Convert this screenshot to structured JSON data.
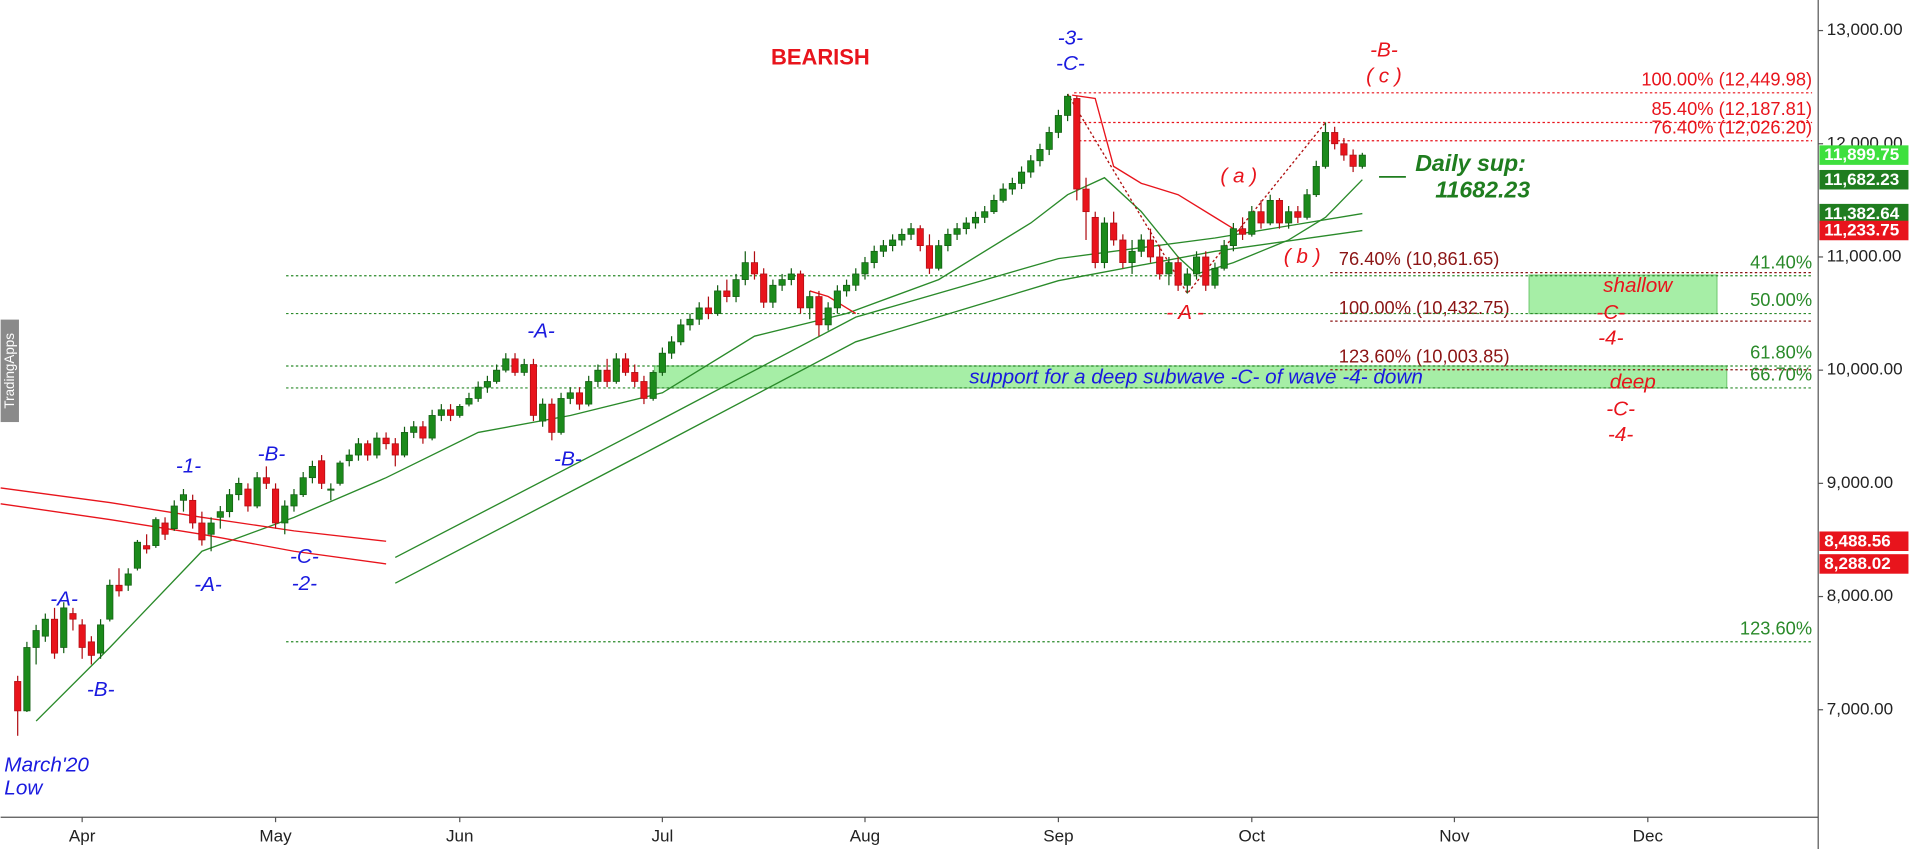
{
  "chart_data": {
    "type": "candlestick",
    "up_color": "#1b8a1b",
    "down_color": "#e8141c",
    "xlim": [
      -1.85,
      195.5
    ],
    "ylim": [
      6050,
      13270
    ],
    "xticks": [
      {
        "value": 7,
        "label": "Apr"
      },
      {
        "value": 28,
        "label": "May"
      },
      {
        "value": 48,
        "label": "Jun"
      },
      {
        "value": 70,
        "label": "Jul"
      },
      {
        "value": 92,
        "label": "Aug"
      },
      {
        "value": 113,
        "label": "Sep"
      },
      {
        "value": 134,
        "label": "Oct"
      },
      {
        "value": 156,
        "label": "Nov"
      },
      {
        "value": 177,
        "label": "Dec"
      }
    ],
    "yticks": [
      {
        "value": 7000,
        "label": "7,000.00"
      },
      {
        "value": 8000,
        "label": "8,000.00"
      },
      {
        "value": 9000,
        "label": "9,000.00"
      },
      {
        "value": 10000,
        "label": "10,000.00"
      },
      {
        "value": 11000,
        "label": "11,000.00"
      },
      {
        "value": 12000,
        "label": "12,000.00"
      },
      {
        "value": 13000,
        "label": "13,000.00"
      }
    ],
    "x": [
      0,
      1,
      2,
      3,
      4,
      5,
      6,
      7,
      8,
      9,
      10,
      11,
      12,
      13,
      14,
      15,
      16,
      17,
      18,
      19,
      20,
      21,
      22,
      23,
      24,
      25,
      26,
      27,
      28,
      29,
      30,
      31,
      32,
      33,
      34,
      35,
      36,
      37,
      38,
      39,
      40,
      41,
      42,
      43,
      44,
      45,
      46,
      47,
      48,
      49,
      50,
      51,
      52,
      53,
      54,
      55,
      56,
      57,
      58,
      59,
      60,
      61,
      62,
      63,
      64,
      65,
      66,
      67,
      68,
      69,
      70,
      71,
      72,
      73,
      74,
      75,
      76,
      77,
      78,
      79,
      80,
      81,
      82,
      83,
      84,
      85,
      86,
      87,
      88,
      89,
      90,
      91,
      92,
      93,
      94,
      95,
      96,
      97,
      98,
      99,
      100,
      101,
      102,
      103,
      104,
      105,
      106,
      107,
      108,
      109,
      110,
      111,
      112,
      113,
      114,
      115,
      116,
      117,
      118,
      119,
      120,
      121,
      122,
      123,
      124,
      125,
      126,
      127,
      128,
      129,
      130,
      131,
      132,
      133,
      134,
      135,
      136,
      137,
      138,
      139,
      140,
      141,
      142,
      143,
      144,
      145,
      146
    ],
    "ohlc": [
      [
        7250,
        7300,
        6770,
        6990
      ],
      [
        6990,
        7600,
        6980,
        7550
      ],
      [
        7550,
        7750,
        7400,
        7700
      ],
      [
        7650,
        7850,
        7600,
        7800
      ],
      [
        7800,
        7900,
        7450,
        7500
      ],
      [
        7550,
        7950,
        7500,
        7900
      ],
      [
        7850,
        7900,
        7700,
        7800
      ],
      [
        7750,
        7800,
        7450,
        7550
      ],
      [
        7600,
        7650,
        7400,
        7480
      ],
      [
        7500,
        7800,
        7450,
        7750
      ],
      [
        7800,
        8150,
        7780,
        8100
      ],
      [
        8100,
        8250,
        8000,
        8050
      ],
      [
        8100,
        8250,
        8050,
        8200
      ],
      [
        8250,
        8500,
        8230,
        8480
      ],
      [
        8450,
        8550,
        8380,
        8420
      ],
      [
        8450,
        8700,
        8430,
        8680
      ],
      [
        8650,
        8700,
        8500,
        8550
      ],
      [
        8600,
        8850,
        8580,
        8800
      ],
      [
        8850,
        8950,
        8750,
        8900
      ],
      [
        8850,
        8900,
        8600,
        8650
      ],
      [
        8650,
        8750,
        8450,
        8500
      ],
      [
        8550,
        8700,
        8400,
        8650
      ],
      [
        8700,
        8800,
        8600,
        8750
      ],
      [
        8750,
        8950,
        8700,
        8900
      ],
      [
        8900,
        9050,
        8850,
        9000
      ],
      [
        8950,
        9000,
        8750,
        8800
      ],
      [
        8800,
        9100,
        8780,
        9050
      ],
      [
        9050,
        9150,
        8950,
        9000
      ],
      [
        8950,
        9000,
        8600,
        8650
      ],
      [
        8650,
        8850,
        8550,
        8800
      ],
      [
        8800,
        8950,
        8750,
        8900
      ],
      [
        8900,
        9100,
        8880,
        9050
      ],
      [
        9050,
        9200,
        9000,
        9150
      ],
      [
        9200,
        9250,
        8950,
        9000
      ],
      [
        8950,
        9000,
        8850,
        8950
      ],
      [
        9000,
        9200,
        8980,
        9180
      ],
      [
        9200,
        9300,
        9150,
        9250
      ],
      [
        9250,
        9400,
        9200,
        9350
      ],
      [
        9350,
        9380,
        9200,
        9250
      ],
      [
        9250,
        9450,
        9220,
        9400
      ],
      [
        9400,
        9450,
        9300,
        9350
      ],
      [
        9350,
        9400,
        9150,
        9250
      ],
      [
        9250,
        9500,
        9230,
        9450
      ],
      [
        9450,
        9550,
        9400,
        9500
      ],
      [
        9500,
        9550,
        9350,
        9400
      ],
      [
        9400,
        9650,
        9380,
        9600
      ],
      [
        9600,
        9700,
        9550,
        9650
      ],
      [
        9650,
        9700,
        9550,
        9600
      ],
      [
        9600,
        9700,
        9580,
        9680
      ],
      [
        9700,
        9800,
        9680,
        9750
      ],
      [
        9750,
        9900,
        9720,
        9850
      ],
      [
        9850,
        9950,
        9800,
        9900
      ],
      [
        9900,
        10050,
        9880,
        10000
      ],
      [
        10000,
        10150,
        9980,
        10100
      ],
      [
        10100,
        10150,
        9950,
        9980
      ],
      [
        9980,
        10100,
        9950,
        10050
      ],
      [
        10050,
        10100,
        9550,
        9600
      ],
      [
        9550,
        9750,
        9500,
        9700
      ],
      [
        9700,
        9750,
        9380,
        9450
      ],
      [
        9450,
        9800,
        9430,
        9750
      ],
      [
        9750,
        9850,
        9700,
        9800
      ],
      [
        9800,
        9850,
        9650,
        9700
      ],
      [
        9700,
        9950,
        9680,
        9900
      ],
      [
        9900,
        10050,
        9850,
        10000
      ],
      [
        10000,
        10100,
        9850,
        9900
      ],
      [
        9900,
        10150,
        9880,
        10100
      ],
      [
        10100,
        10150,
        9950,
        9980
      ],
      [
        9980,
        10050,
        9850,
        9900
      ],
      [
        9900,
        9950,
        9700,
        9750
      ],
      [
        9750,
        10000,
        9730,
        9980
      ],
      [
        9980,
        10200,
        9950,
        10150
      ],
      [
        10150,
        10300,
        10100,
        10250
      ],
      [
        10250,
        10450,
        10220,
        10400
      ],
      [
        10400,
        10500,
        10350,
        10450
      ],
      [
        10450,
        10600,
        10400,
        10550
      ],
      [
        10550,
        10650,
        10450,
        10500
      ],
      [
        10500,
        10750,
        10480,
        10700
      ],
      [
        10700,
        10800,
        10600,
        10650
      ],
      [
        10650,
        10850,
        10600,
        10800
      ],
      [
        10800,
        11050,
        10750,
        10950
      ],
      [
        10950,
        11050,
        10800,
        10850
      ],
      [
        10850,
        10900,
        10550,
        10600
      ],
      [
        10600,
        10800,
        10550,
        10750
      ],
      [
        10750,
        10850,
        10700,
        10800
      ],
      [
        10800,
        10900,
        10750,
        10850
      ],
      [
        10850,
        10880,
        10500,
        10550
      ],
      [
        10550,
        10700,
        10450,
        10650
      ],
      [
        10650,
        10700,
        10300,
        10400
      ],
      [
        10400,
        10600,
        10350,
        10550
      ],
      [
        10550,
        10750,
        10500,
        10700
      ],
      [
        10700,
        10800,
        10650,
        10750
      ],
      [
        10750,
        10900,
        10700,
        10850
      ],
      [
        10850,
        11000,
        10800,
        10950
      ],
      [
        10950,
        11100,
        10900,
        11050
      ],
      [
        11050,
        11150,
        11000,
        11100
      ],
      [
        11100,
        11200,
        11050,
        11150
      ],
      [
        11150,
        11250,
        11100,
        11200
      ],
      [
        11200,
        11300,
        11150,
        11250
      ],
      [
        11250,
        11280,
        11050,
        11100
      ],
      [
        11100,
        11200,
        10850,
        10900
      ],
      [
        10900,
        11150,
        10880,
        11100
      ],
      [
        11100,
        11250,
        11050,
        11200
      ],
      [
        11200,
        11300,
        11150,
        11250
      ],
      [
        11250,
        11350,
        11200,
        11300
      ],
      [
        11300,
        11400,
        11250,
        11350
      ],
      [
        11350,
        11450,
        11300,
        11400
      ],
      [
        11400,
        11550,
        11380,
        11500
      ],
      [
        11500,
        11650,
        11480,
        11600
      ],
      [
        11600,
        11700,
        11550,
        11650
      ],
      [
        11650,
        11800,
        11600,
        11750
      ],
      [
        11750,
        11900,
        11700,
        11850
      ],
      [
        11850,
        12000,
        11800,
        11950
      ],
      [
        11950,
        12150,
        11900,
        12100
      ],
      [
        12100,
        12300,
        12050,
        12250
      ],
      [
        12250,
        12440,
        12200,
        12420
      ],
      [
        12400,
        12420,
        11500,
        11600
      ],
      [
        11600,
        11700,
        11150,
        11400
      ],
      [
        11350,
        11400,
        10900,
        10950
      ],
      [
        10950,
        11350,
        10900,
        11300
      ],
      [
        11300,
        11400,
        11100,
        11150
      ],
      [
        11150,
        11200,
        10900,
        10950
      ],
      [
        10950,
        11150,
        10850,
        11050
      ],
      [
        11050,
        11200,
        11000,
        11150
      ],
      [
        11150,
        11250,
        10950,
        11000
      ],
      [
        11000,
        11100,
        10800,
        10850
      ],
      [
        10850,
        11000,
        10750,
        10950
      ],
      [
        10950,
        11000,
        10700,
        10750
      ],
      [
        10750,
        10900,
        10677,
        10850
      ],
      [
        10850,
        11050,
        10800,
        11000
      ],
      [
        11000,
        11050,
        10700,
        10750
      ],
      [
        10750,
        10950,
        10720,
        10900
      ],
      [
        10900,
        11150,
        10880,
        11100
      ],
      [
        11100,
        11300,
        11050,
        11250
      ],
      [
        11250,
        11350,
        11150,
        11200
      ],
      [
        11200,
        11450,
        11180,
        11400
      ],
      [
        11400,
        11500,
        11250,
        11300
      ],
      [
        11300,
        11550,
        11280,
        11500
      ],
      [
        11500,
        11520,
        11250,
        11300
      ],
      [
        11300,
        11450,
        11250,
        11400
      ],
      [
        11400,
        11450,
        11300,
        11350
      ],
      [
        11350,
        11600,
        11330,
        11550
      ],
      [
        11550,
        11850,
        11530,
        11800
      ],
      [
        11800,
        12188,
        11780,
        12100
      ],
      [
        12100,
        12150,
        11950,
        12000
      ],
      [
        12000,
        12050,
        11850,
        11900
      ],
      [
        11900,
        11950,
        11750,
        11800
      ],
      [
        11800,
        11920,
        11780,
        11899.75
      ]
    ],
    "series": [
      {
        "color": "#2a8a2a",
        "x": [
          2,
          10,
          20,
          30,
          40,
          50,
          60,
          70,
          80,
          90,
          100,
          110,
          114,
          118,
          122,
          126,
          128,
          132,
          138,
          142,
          146
        ],
        "values": [
          6900,
          7550,
          8400,
          8700,
          9050,
          9450,
          9600,
          9800,
          10300,
          10500,
          10800,
          11300,
          11550,
          11700,
          11400,
          11000,
          10850,
          10950,
          11150,
          11350,
          11682.23
        ]
      },
      {
        "color": "#2a8a2a",
        "x": [
          41,
          70,
          91,
          113,
          130,
          146
        ],
        "values": [
          8345,
          9570,
          10468,
          10985,
          11168,
          11382.64
        ]
      },
      {
        "color": "#2a8a2a",
        "x": [
          41,
          70,
          91,
          113,
          130,
          146
        ],
        "values": [
          8118,
          9350,
          10250,
          10790,
          11050,
          11233.75
        ]
      },
      {
        "color": "#e8141c",
        "x": [
          -1.85,
          10,
          20,
          30,
          40
        ],
        "values": [
          8960,
          8830,
          8700,
          8580,
          8488.56
        ]
      },
      {
        "color": "#e8141c",
        "x": [
          -1.85,
          10,
          20,
          30,
          40
        ],
        "values": [
          8820,
          8680,
          8550,
          8400,
          8288.02
        ]
      },
      {
        "color": "#e8141c",
        "x": [
          114.5,
          117,
          119,
          122,
          126,
          130,
          132
        ],
        "values": [
          12430,
          12400,
          11800,
          11650,
          11550,
          11350,
          11250
        ]
      },
      {
        "color": "#e8141c",
        "x": [
          86,
          88,
          90,
          91
        ],
        "values": [
          10700,
          10650,
          10550,
          10500
        ]
      },
      {
        "color": "#b01010",
        "dash": true,
        "x": [
          114,
          127,
          142
        ],
        "values": [
          12440,
          10677,
          12188
        ]
      }
    ],
    "fib_red": {
      "color": "#e8141c",
      "levels": [
        {
          "value": 12449.98,
          "label": "100.00% (12,449.98)"
        },
        {
          "value": 12187.81,
          "label": "85.40% (12,187.81)"
        },
        {
          "value": 12026.2,
          "label": "76.40% (12,026.20)"
        }
      ]
    },
    "fib_brown": {
      "color": "#8b1414",
      "levels": [
        {
          "value": 10861.65,
          "label": "76.40% (10,861.65)"
        },
        {
          "value": 10432.75,
          "label": "100.00% (10,432.75)"
        },
        {
          "value": 10003.85,
          "label": "123.60% (10,003.85)"
        }
      ]
    },
    "fib_green": {
      "color": "#2a8a2a",
      "levels": [
        {
          "value": 10834,
          "label": "41.40%"
        },
        {
          "value": 10500,
          "label": "50.00%"
        },
        {
          "value": 10037,
          "label": "61.80%"
        },
        {
          "value": 9843,
          "label": "66.70%"
        },
        {
          "value": 7601,
          "label": "123.60%"
        }
      ]
    },
    "zones": [
      {
        "ylim": [
          9843,
          10037
        ],
        "color": "#a6eea6"
      },
      {
        "ylim": [
          10500,
          10840
        ],
        "color": "#a6eea6"
      }
    ],
    "price_tags": [
      {
        "value": 11899.75,
        "label": "11,899.75",
        "color": "#3ee03e"
      },
      {
        "value": 11682.23,
        "label": "11,682.23",
        "color": "#1f7d1f"
      },
      {
        "value": 11382.64,
        "label": "11,382.64",
        "color": "#1f7d1f"
      },
      {
        "value": 11233.75,
        "label": "11,233.75",
        "color": "#e8141c"
      },
      {
        "value": 8488.56,
        "label": "8,488.56",
        "color": "#e8141c"
      },
      {
        "value": 8288.02,
        "label": "8,288.02",
        "color": "#e8141c"
      }
    ],
    "annotations": [
      "BEARISH",
      "-3-",
      "-C-",
      "-B-",
      "( c )",
      "( a )",
      "( b )",
      "- A -",
      "Daily sup:",
      "11682.23",
      "shallow",
      "-C-",
      "-4-",
      "deep",
      "-C-",
      "-4-",
      "support for a deep subwave -C- of wave -4- down",
      "-A-",
      "-B-",
      "-1-",
      "-B-",
      "-A-",
      "-C-",
      "-2-",
      "-A-",
      "-B-",
      "March'20",
      "Low",
      "TradingApps"
    ]
  }
}
